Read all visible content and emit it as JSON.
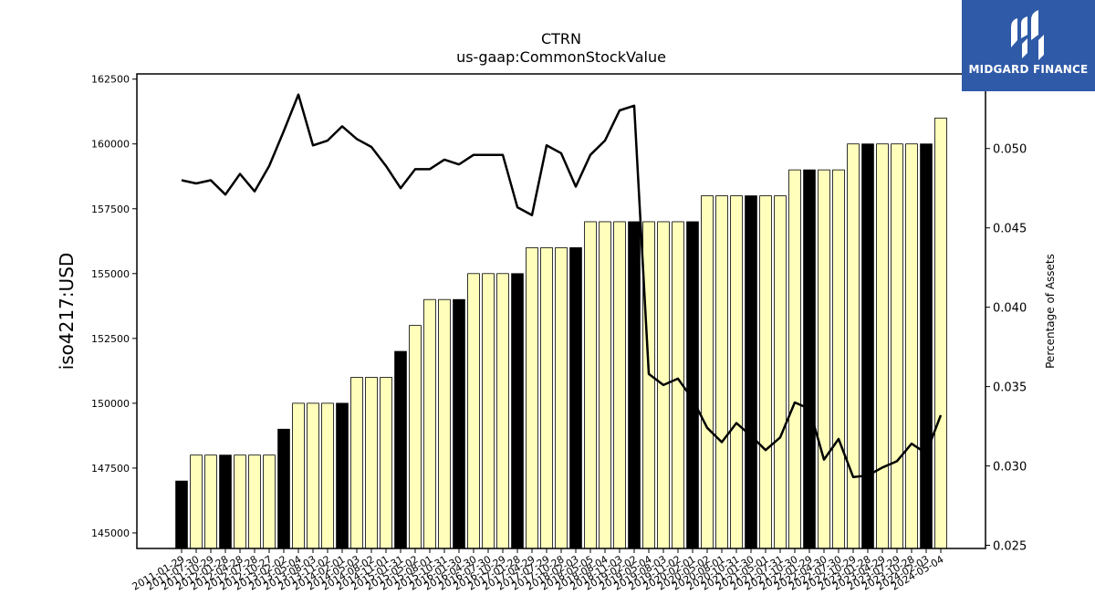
{
  "logo": {
    "text": "MIDGARD FINANCE"
  },
  "chart_data": {
    "type": "bar",
    "title": "CTRN",
    "subtitle": "us-gaap:CommonStockValue",
    "ylabel": "iso4217:USD",
    "y2label": "Percentage of Assets",
    "ylim": [
      144400,
      162700
    ],
    "y2lim": [
      0.0248,
      0.0547
    ],
    "yticks": [
      145000,
      147500,
      150000,
      152500,
      155000,
      157500,
      160000,
      162500
    ],
    "y2ticks": [
      "0.025",
      "0.030",
      "0.035",
      "0.040",
      "0.045",
      "0.050"
    ],
    "categories": [
      "2011-01-29",
      "2011-07-30",
      "2011-10-29",
      "2012-01-28",
      "2012-04-28",
      "2012-07-28",
      "2012-10-27",
      "2013-02-02",
      "2013-05-04",
      "2013-08-03",
      "2013-11-02",
      "2014-02-01",
      "2014-05-03",
      "2014-08-02",
      "2014-11-01",
      "2015-01-31",
      "2015-05-02",
      "2015-08-01",
      "2015-10-31",
      "2016-01-30",
      "2016-04-30",
      "2016-07-30",
      "2016-10-29",
      "2017-01-28",
      "2017-04-29",
      "2017-07-29",
      "2017-10-28",
      "2018-02-03",
      "2018-05-05",
      "2018-08-04",
      "2018-11-03",
      "2019-02-02",
      "2019-05-04",
      "2019-08-03",
      "2019-11-02",
      "2020-02-01",
      "2020-05-02",
      "2020-08-01",
      "2020-10-31",
      "2021-01-30",
      "2021-05-01",
      "2021-07-31",
      "2021-10-30",
      "2022-01-29",
      "2022-04-30",
      "2022-07-30",
      "2022-10-29",
      "2023-01-28",
      "2023-04-29",
      "2023-07-29",
      "2023-10-28",
      "2024-02-03",
      "2024-05-04"
    ],
    "series": [
      {
        "values": [
          147000,
          148000,
          148000,
          148000,
          148000,
          148000,
          148000,
          149000,
          150000,
          150000,
          150000,
          150000,
          151000,
          151000,
          151000,
          152000,
          153000,
          154000,
          154000,
          154000,
          155000,
          155000,
          155000,
          155000,
          156000,
          156000,
          156000,
          156000,
          157000,
          157000,
          157000,
          157000,
          157000,
          157000,
          157000,
          157000,
          158000,
          158000,
          158000,
          158000,
          158000,
          158000,
          159000,
          159000,
          159000,
          159000,
          160000,
          160000,
          160000,
          160000,
          160000,
          160000,
          161000
        ],
        "highlighted": [
          true,
          false,
          false,
          true,
          false,
          false,
          false,
          true,
          false,
          false,
          false,
          true,
          false,
          false,
          false,
          true,
          false,
          false,
          false,
          true,
          false,
          false,
          false,
          true,
          false,
          false,
          false,
          true,
          false,
          false,
          false,
          true,
          false,
          false,
          false,
          true,
          false,
          false,
          false,
          true,
          false,
          false,
          false,
          true,
          false,
          false,
          false,
          true,
          false,
          false,
          false,
          true,
          false
        ]
      },
      {
        "axis": "right",
        "values": [
          0.048,
          0.0478,
          0.048,
          0.0471,
          0.0484,
          0.0473,
          0.0489,
          0.0511,
          0.0534,
          0.0502,
          0.0505,
          0.0514,
          0.0506,
          0.0501,
          0.0489,
          0.0475,
          0.0487,
          0.0487,
          0.0493,
          0.049,
          0.0496,
          0.0496,
          0.0496,
          0.0463,
          0.0458,
          0.0502,
          0.0497,
          0.0476,
          0.0496,
          0.0505,
          0.0524,
          0.0527,
          0.0358,
          0.0351,
          0.0355,
          0.0342,
          0.0324,
          0.0315,
          0.0327,
          0.0319,
          0.031,
          0.0318,
          0.034,
          0.0336,
          0.0304,
          0.0317,
          0.0293,
          0.0294,
          0.0299,
          0.0303,
          0.0314,
          0.0308,
          0.0332
        ]
      }
    ],
    "colors": {
      "bar": "#ffffbb",
      "bar_highlight": "#000000",
      "line": "#000000",
      "logo_bg": "#2f5aa8"
    },
    "grid": false
  }
}
